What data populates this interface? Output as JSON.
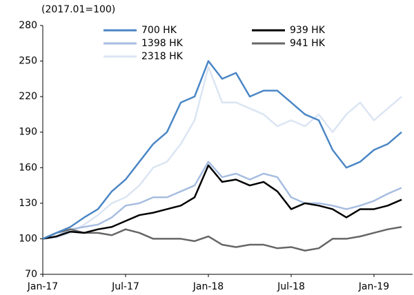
{
  "chart_data": {
    "type": "line",
    "subtitle": "(2017.01=100)",
    "categories": [
      "Jan-17",
      null,
      null,
      null,
      null,
      null,
      "Jul-17",
      null,
      null,
      null,
      null,
      null,
      "Jan-18",
      null,
      null,
      null,
      null,
      null,
      "Jul-18",
      null,
      null,
      null,
      null,
      null,
      "Jan-19",
      null,
      null
    ],
    "series": [
      {
        "name": "700 HK",
        "color": "#4a86c5",
        "values": [
          100,
          105,
          110,
          118,
          125,
          140,
          150,
          165,
          180,
          190,
          215,
          220,
          250,
          235,
          240,
          220,
          225,
          225,
          215,
          205,
          200,
          175,
          160,
          165,
          175,
          180,
          190
        ]
      },
      {
        "name": "939 HK",
        "color": "#000000",
        "values": [
          100,
          102,
          106,
          105,
          108,
          110,
          115,
          120,
          122,
          125,
          128,
          135,
          162,
          148,
          150,
          145,
          148,
          140,
          125,
          130,
          128,
          125,
          118,
          125,
          125,
          128,
          133
        ]
      },
      {
        "name": "1398 HK",
        "color": "#a6bde0",
        "values": [
          100,
          102,
          108,
          110,
          112,
          118,
          128,
          130,
          135,
          135,
          140,
          145,
          165,
          152,
          155,
          150,
          155,
          152,
          135,
          130,
          130,
          128,
          125,
          128,
          132,
          138,
          143
        ]
      },
      {
        "name": "941 HK",
        "color": "#666666",
        "values": [
          100,
          105,
          108,
          105,
          105,
          103,
          108,
          105,
          100,
          100,
          100,
          98,
          102,
          95,
          93,
          95,
          95,
          92,
          93,
          90,
          92,
          100,
          100,
          102,
          105,
          108,
          110
        ]
      },
      {
        "name": "2318 HK",
        "color": "#dbe5f3",
        "values": [
          100,
          101,
          105,
          112,
          120,
          130,
          135,
          145,
          160,
          165,
          180,
          200,
          245,
          215,
          215,
          210,
          205,
          195,
          200,
          195,
          205,
          190,
          205,
          215,
          200,
          210,
          220
        ]
      }
    ],
    "ylim": [
      70,
      280
    ],
    "yticks": [
      70,
      100,
      130,
      160,
      190,
      220,
      250,
      280
    ]
  }
}
